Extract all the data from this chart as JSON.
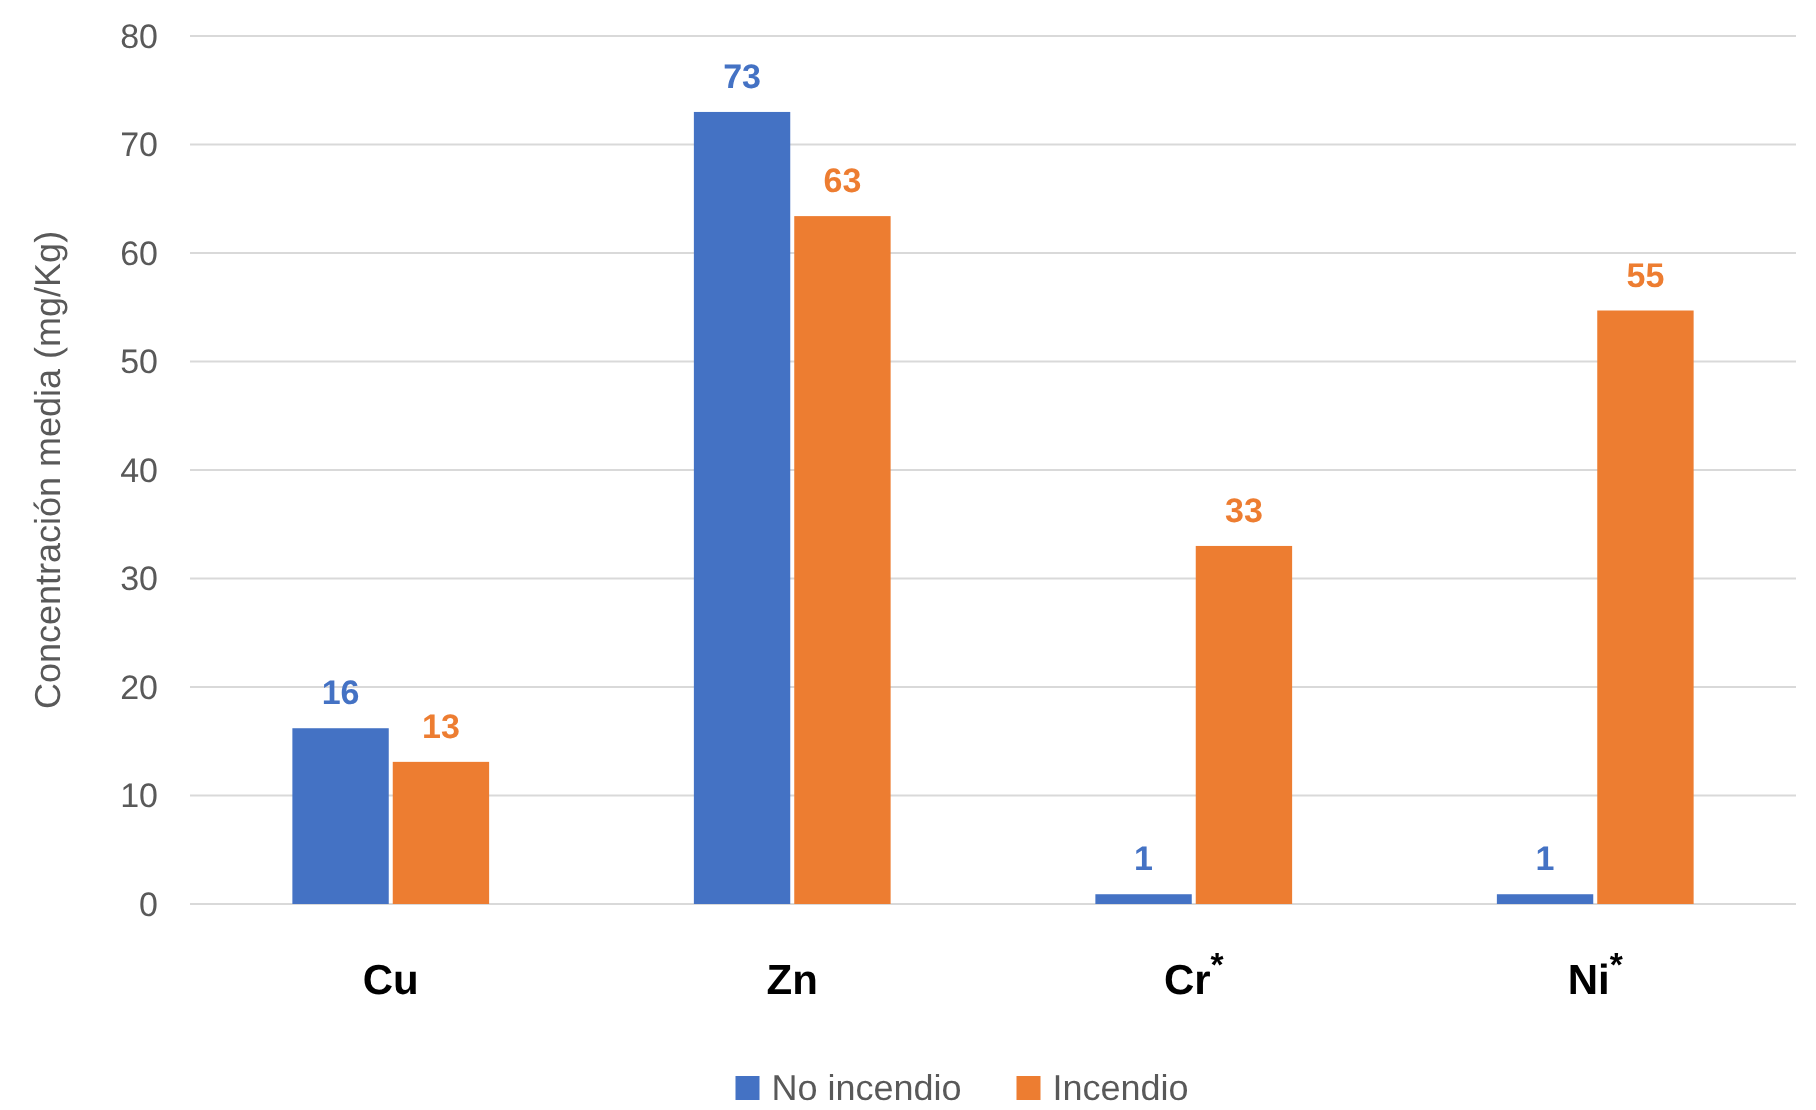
{
  "chart_data": {
    "type": "bar",
    "ylabel": "Concentración media (mg/Kg)",
    "categories": [
      "Cu",
      "Zn",
      "Cr$^{*}$",
      "Ni$^{*}$"
    ],
    "series": [
      {
        "name": "No incendio",
        "color": "#4472c4",
        "values": [
          16.2,
          73,
          0.9,
          0.9
        ],
        "value_labels": [
          "16",
          "73",
          "1",
          "1"
        ]
      },
      {
        "name": "Incendio",
        "color": "#ed7d31",
        "values": [
          13.1,
          63.4,
          33,
          54.7
        ],
        "value_labels": [
          "13",
          "63",
          "33",
          "55"
        ]
      }
    ],
    "ylim": [
      0,
      80
    ],
    "yticks": [
      0,
      10,
      20,
      30,
      40,
      50,
      60,
      70,
      80
    ],
    "grid": "y",
    "legend": "bottom"
  }
}
